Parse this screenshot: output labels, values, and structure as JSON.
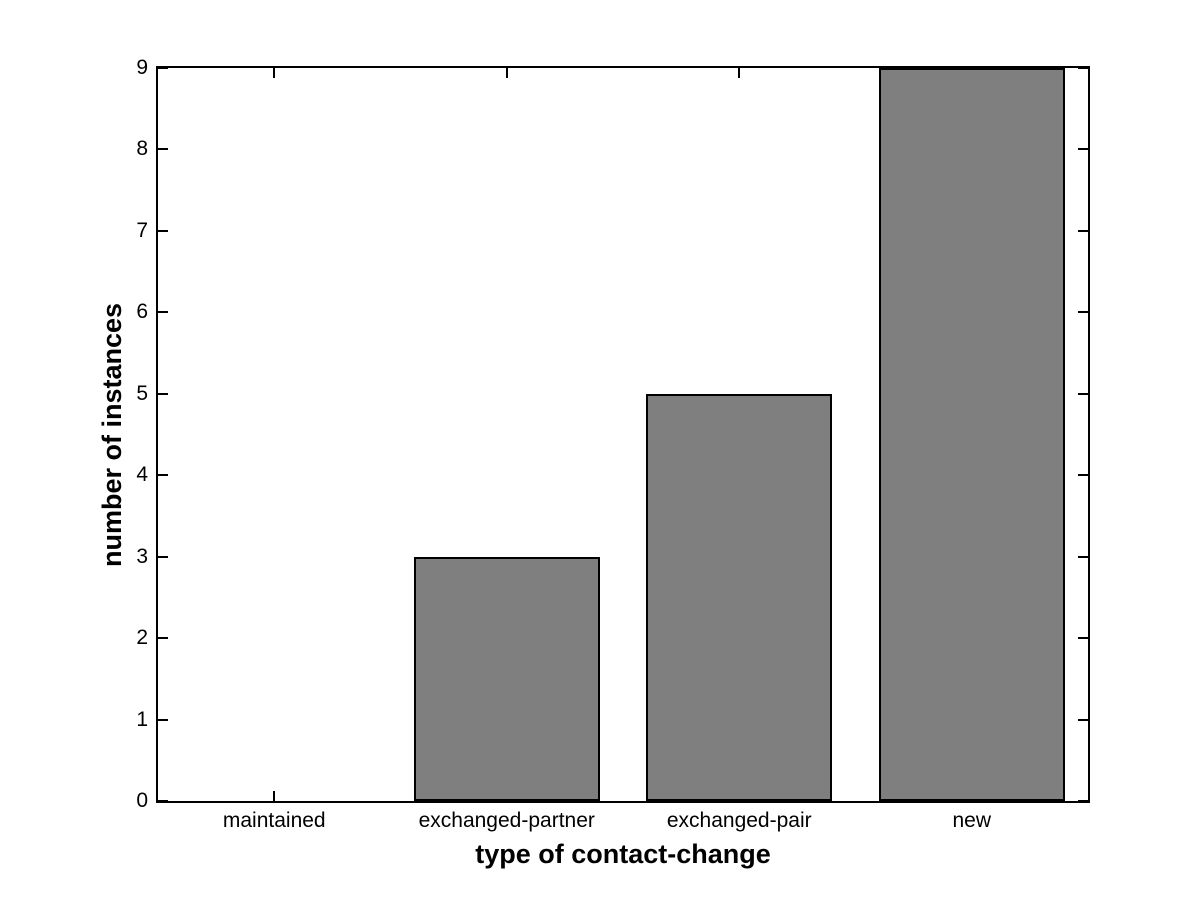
{
  "chart_data": {
    "type": "bar",
    "title": "",
    "xlabel": "type of contact-change",
    "ylabel": "number of instances",
    "categories": [
      "maintained",
      "exchanged-partner",
      "exchanged-pair",
      "new"
    ],
    "values": [
      0,
      3,
      5,
      9
    ],
    "ylim": [
      0,
      9
    ],
    "yticks": [
      0,
      1,
      2,
      3,
      4,
      5,
      6,
      7,
      8,
      9
    ],
    "grid": false,
    "legend": null,
    "bar_width_fraction": 0.8,
    "colors": {
      "bar_fill": "#7f7f7f",
      "bar_border": "#000000",
      "axis": "#000000",
      "text": "#000000",
      "background": "#ffffff"
    }
  }
}
